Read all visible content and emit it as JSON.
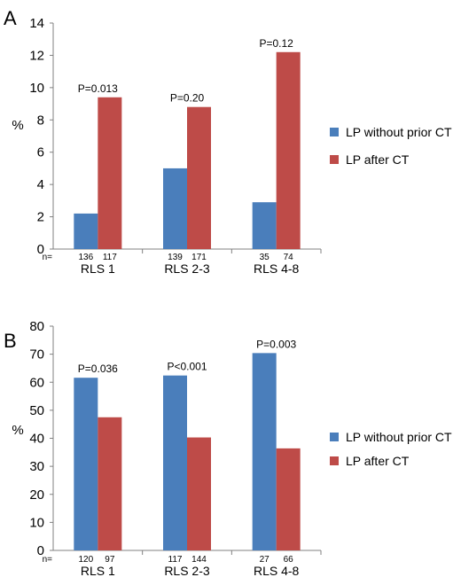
{
  "chart_data": [
    {
      "type": "bar",
      "panel": "A",
      "ylabel": "%",
      "ylim": [
        0,
        14
      ],
      "yticks": [
        0,
        2,
        4,
        6,
        8,
        10,
        12,
        14
      ],
      "n_prefix": "n=",
      "categories": [
        "RLS 1",
        "RLS 2-3",
        "RLS 4-8"
      ],
      "series": [
        {
          "name": "LP without prior CT",
          "color": "#4a7ebb",
          "values": [
            2.2,
            5.0,
            2.9
          ],
          "n": [
            "136",
            "139",
            "35"
          ]
        },
        {
          "name": "LP after CT",
          "color": "#be4b48",
          "values": [
            9.4,
            8.8,
            12.2
          ],
          "n": [
            "117",
            "171",
            "74"
          ]
        }
      ],
      "p_values": [
        "P=0.013",
        "P=0.20",
        "P=0.12"
      ],
      "legend_position": "right"
    },
    {
      "type": "bar",
      "panel": "B",
      "ylabel": "%",
      "ylim": [
        0,
        80
      ],
      "yticks": [
        0,
        10,
        20,
        30,
        40,
        50,
        60,
        70,
        80
      ],
      "n_prefix": "n=",
      "categories": [
        "RLS 1",
        "RLS 2-3",
        "RLS 4-8"
      ],
      "series": [
        {
          "name": "LP without prior CT",
          "color": "#4a7ebb",
          "values": [
            61.6,
            62.4,
            70.4
          ],
          "n": [
            "120",
            "117",
            "27"
          ]
        },
        {
          "name": "LP after CT",
          "color": "#be4b48",
          "values": [
            47.5,
            40.3,
            36.4
          ],
          "n": [
            "97",
            "144",
            "66"
          ]
        }
      ],
      "p_values": [
        "P=0.036",
        "P<0.001",
        "P=0.003"
      ],
      "legend_position": "right"
    }
  ]
}
